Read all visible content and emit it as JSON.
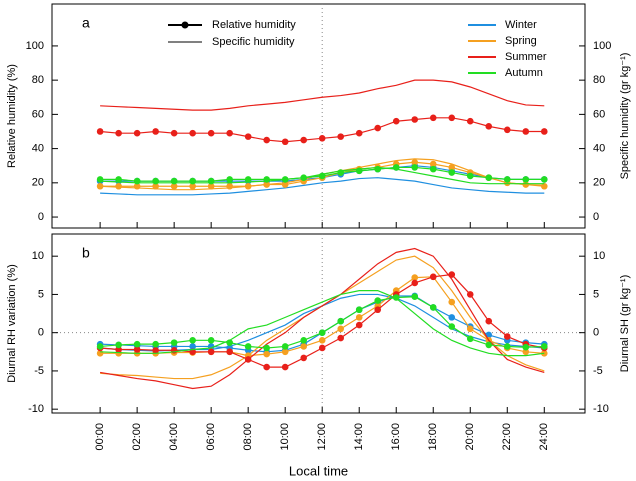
{
  "chart_data": [
    {
      "type": "line",
      "panel_label": "a",
      "ylabel": "Relative humidity (%)",
      "y2label": "Specific humidity (gr kg⁻¹)",
      "x": [
        0,
        1,
        2,
        3,
        4,
        5,
        6,
        7,
        8,
        9,
        10,
        11,
        12,
        13,
        14,
        15,
        16,
        17,
        18,
        19,
        20,
        21,
        22,
        23,
        24
      ],
      "xlim": [
        -2.6,
        26.2
      ],
      "ylim": [
        -6.4,
        124.5
      ],
      "yticks": [
        0,
        20,
        40,
        60,
        80,
        100
      ],
      "y2lim": [
        -6.4,
        124.5
      ],
      "y2ticks": [
        0,
        20,
        40,
        60,
        80,
        100
      ],
      "vline": 12,
      "legend_styles": [
        "Relative humidity",
        "Specific humidity"
      ],
      "series": [
        {
          "name": "Winter",
          "color": "#1f8fe0",
          "values": [
            21,
            21,
            21,
            21,
            21,
            21,
            21,
            21,
            21,
            21,
            21,
            22,
            23,
            25,
            27,
            28,
            29,
            30,
            29,
            27,
            25,
            23,
            22,
            22,
            22
          ],
          "sh_values": [
            14,
            13.5,
            13,
            13,
            13,
            13,
            13.5,
            14,
            15,
            16,
            17,
            18.5,
            20,
            21,
            22.5,
            23,
            22,
            21,
            19,
            17,
            16,
            15,
            14.5,
            14,
            14
          ]
        },
        {
          "name": "Spring",
          "color": "#f5a020",
          "values": [
            18,
            18,
            18,
            18,
            18,
            18,
            18,
            18,
            18,
            19,
            19,
            21,
            23,
            26,
            28,
            29,
            31,
            32,
            31,
            29,
            26,
            23,
            20,
            19,
            18
          ],
          "sh_values": [
            18,
            17.5,
            17,
            16.5,
            16,
            16,
            16.5,
            17,
            18,
            19,
            20,
            22,
            25,
            27,
            29,
            31,
            33,
            34,
            33.5,
            31,
            27,
            23,
            20,
            19,
            18.5
          ]
        },
        {
          "name": "Summer",
          "color": "#e8201a",
          "values": [
            50,
            49,
            49,
            50,
            49,
            49,
            49,
            49,
            47,
            45,
            44,
            45,
            46,
            47,
            49,
            52,
            56,
            57,
            58,
            58,
            56,
            53,
            51,
            50,
            50
          ],
          "sh_values": [
            65,
            64.5,
            64,
            63.5,
            63,
            62.5,
            62.5,
            63.5,
            65,
            66,
            67,
            68.5,
            70,
            71,
            72.5,
            75,
            77,
            80,
            80,
            79,
            76,
            72,
            68,
            65.5,
            65
          ]
        },
        {
          "name": "Autumn",
          "color": "#22dd22",
          "values": [
            22,
            22,
            21,
            21,
            21,
            21,
            21,
            22,
            22,
            22,
            22,
            23,
            24,
            26,
            27,
            28,
            29,
            29,
            28,
            26,
            24,
            23,
            22,
            22,
            22
          ],
          "sh_values": [
            21,
            20.5,
            20,
            20,
            20,
            20,
            20,
            20,
            20.5,
            21,
            22,
            23,
            25,
            27,
            28,
            29,
            28,
            26,
            24,
            22,
            20,
            19.5,
            19.5,
            19.5,
            19.5
          ]
        }
      ]
    },
    {
      "type": "line",
      "panel_label": "b",
      "ylabel": "Diurnal RH variation (%)",
      "y2label": "Diurnal  SH (gr kg⁻¹)",
      "xlabel": "Local time",
      "x": [
        0,
        1,
        2,
        3,
        4,
        5,
        6,
        7,
        8,
        9,
        10,
        11,
        12,
        13,
        14,
        15,
        16,
        17,
        18,
        19,
        20,
        21,
        22,
        23,
        24
      ],
      "xlim": [
        -2.6,
        26.2
      ],
      "xticks": [
        {
          "value": 0,
          "label": "00:00"
        },
        {
          "value": 2,
          "label": "02:00"
        },
        {
          "value": 4,
          "label": "04:00"
        },
        {
          "value": 6,
          "label": "06:00"
        },
        {
          "value": 8,
          "label": "08:00"
        },
        {
          "value": 10,
          "label": "10:00"
        },
        {
          "value": 12,
          "label": "12:00"
        },
        {
          "value": 14,
          "label": "14:00"
        },
        {
          "value": 16,
          "label": "16:00"
        },
        {
          "value": 18,
          "label": "18:00"
        },
        {
          "value": 20,
          "label": "20:00"
        },
        {
          "value": 22,
          "label": "22:00"
        },
        {
          "value": 24,
          "label": "24:00"
        }
      ],
      "ylim": [
        -10.5,
        12.9
      ],
      "yticks": [
        -10,
        -5,
        0,
        5,
        10
      ],
      "y2lim": [
        -10.5,
        12.9
      ],
      "y2ticks": [
        -10,
        -5,
        0,
        5,
        10
      ],
      "vline": 12,
      "hline": 0,
      "series": [
        {
          "color": "#1f8fe0",
          "values": [
            -1.5,
            -1.6,
            -1.7,
            -1.8,
            -1.8,
            -1.8,
            -1.8,
            -2,
            -2.3,
            -2.5,
            -2.3,
            -1.5,
            0,
            1.5,
            3,
            4,
            4.8,
            4.8,
            3.3,
            2,
            0.8,
            -0.3,
            -1,
            -1.3,
            -1.5
          ],
          "sh_values": [
            -2,
            -2.2,
            -2.3,
            -2.4,
            -2.3,
            -2.2,
            -2.2,
            -1.8,
            -1,
            0,
            1,
            2.5,
            3.5,
            4.5,
            5,
            5,
            4.5,
            3.5,
            2,
            0.5,
            -0.5,
            -1.2,
            -1.6,
            -1.8,
            -2
          ]
        },
        {
          "color": "#f5a020",
          "values": [
            -2.7,
            -2.7,
            -2.7,
            -2.7,
            -2.6,
            -2.6,
            -2.5,
            -2.5,
            -3,
            -2.8,
            -2.5,
            -1.8,
            -1,
            0.5,
            2,
            3.5,
            5.5,
            7.2,
            7.3,
            4,
            0.5,
            -1,
            -2,
            -2.5,
            -2.7
          ],
          "sh_values": [
            -5.3,
            -5.5,
            -5.6,
            -5.8,
            -6,
            -6,
            -5.5,
            -4.5,
            -3,
            -1,
            0.5,
            2,
            3.5,
            5,
            6.5,
            8,
            9.5,
            10,
            8.5,
            5.5,
            2,
            -1,
            -3,
            -4.2,
            -5
          ]
        },
        {
          "color": "#e8201a",
          "values": [
            -2,
            -2.2,
            -2.2,
            -2.3,
            -2.3,
            -2.5,
            -2.5,
            -2.5,
            -3.5,
            -4.5,
            -4.5,
            -3.3,
            -2,
            -0.7,
            1,
            3,
            5,
            6.5,
            7.3,
            7.6,
            5,
            1.5,
            -0.5,
            -1.5,
            -2
          ],
          "sh_values": [
            -5.2,
            -5.6,
            -6,
            -6.3,
            -6.8,
            -7.3,
            -7,
            -5.5,
            -3.5,
            -1.5,
            0,
            2,
            3.5,
            5,
            7,
            9,
            10.5,
            11,
            10,
            7,
            3,
            -1,
            -3.5,
            -4.5,
            -5.2
          ]
        },
        {
          "color": "#22dd22",
          "values": [
            -1.8,
            -1.6,
            -1.5,
            -1.5,
            -1.3,
            -1,
            -1,
            -1.3,
            -1.8,
            -2,
            -1.8,
            -1,
            0,
            1.5,
            3,
            4.2,
            4.6,
            4.7,
            3.3,
            0.8,
            -0.8,
            -1.6,
            -1.8,
            -1.9,
            -1.8
          ],
          "sh_values": [
            -2.5,
            -2.6,
            -2.7,
            -2.7,
            -2.5,
            -2.2,
            -2,
            -1,
            0.5,
            1,
            2,
            3,
            4,
            5,
            5.5,
            5.5,
            4.5,
            2.5,
            0.5,
            -1,
            -2,
            -2.7,
            -3,
            -3,
            -2.7
          ]
        }
      ]
    }
  ]
}
